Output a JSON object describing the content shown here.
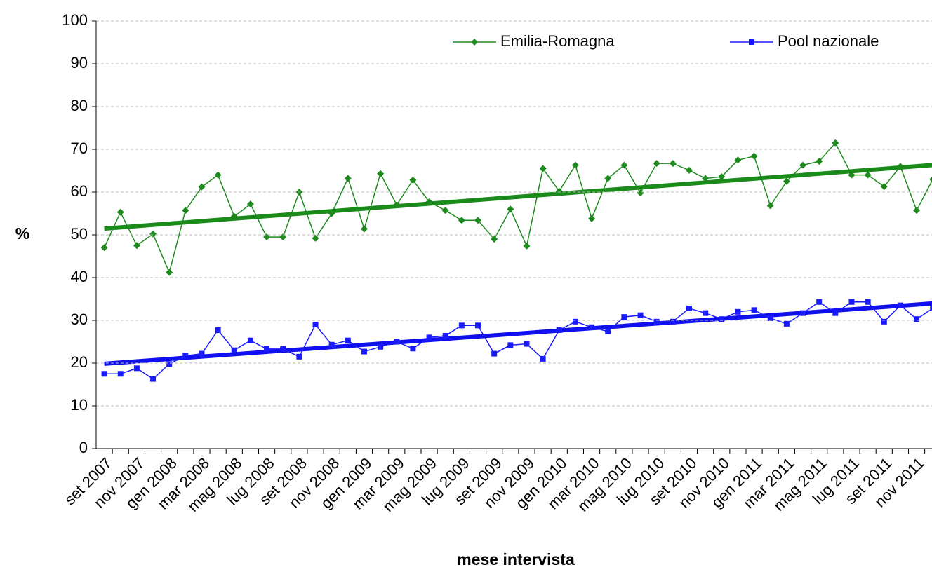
{
  "chart_data": {
    "type": "line",
    "y_label": "%",
    "x_label": "mese intervista",
    "categories": [
      "set 2007",
      null,
      "nov 2007",
      null,
      "gen 2008",
      null,
      "mar 2008",
      null,
      "mag 2008",
      null,
      "lug 2008",
      null,
      "set 2008",
      null,
      "nov 2008",
      null,
      "gen 2009",
      null,
      "mar 2009",
      null,
      "mag 2009",
      null,
      "lug 2009",
      null,
      "set 2009",
      null,
      "nov 2009",
      null,
      "gen 2010",
      null,
      "mar 2010",
      null,
      "mag 2010",
      null,
      "lug 2010",
      null,
      "set 2010",
      null,
      "nov 2010",
      null,
      "gen 2011",
      null,
      "mar 2011",
      null,
      "mag 2011",
      null,
      "lug 2011",
      null,
      "set 2011",
      null,
      "nov 2011",
      null
    ],
    "series": [
      {
        "name": "Emilia-Romagna",
        "color": "#1e8a1e",
        "marker": "diamond",
        "values": [
          47,
          55.3,
          47.5,
          50.2,
          41.2,
          55.7,
          61.2,
          64,
          54.3,
          57.2,
          49.5,
          49.5,
          60,
          49.2,
          55,
          63.2,
          51.4,
          64.3,
          57,
          62.8,
          57.7,
          55.7,
          53.4,
          53.4,
          49,
          56,
          47.4,
          65.5,
          60.2,
          66.3,
          53.8,
          63.2,
          66.3,
          59.8,
          66.7,
          66.7,
          65.1,
          63.2,
          63.6,
          67.5,
          68.4,
          56.8,
          62.5,
          66.3,
          67.2,
          71.5,
          64,
          64,
          61.3,
          66,
          55.7,
          63
        ]
      },
      {
        "name": "Pool nazionale",
        "color": "#1a1aff",
        "marker": "square",
        "values": [
          17.5,
          17.5,
          18.8,
          16.3,
          19.8,
          21.7,
          22.2,
          27.7,
          23,
          25.3,
          23.3,
          23.3,
          21.5,
          29,
          24.3,
          25.3,
          22.7,
          23.8,
          25,
          23.4,
          26,
          26.4,
          28.8,
          28.8,
          22.2,
          24.2,
          24.5,
          21,
          27.7,
          29.7,
          28.4,
          27.4,
          30.8,
          31.2,
          29.7,
          29.7,
          32.8,
          31.7,
          30.3,
          32,
          32.4,
          30.5,
          29.2,
          31.7,
          34.3,
          31.7,
          34.3,
          34.3,
          29.7,
          33.5,
          30.3,
          32.8
        ]
      }
    ],
    "ylim": [
      0,
      100
    ],
    "yticks": [
      0,
      10,
      20,
      30,
      40,
      50,
      60,
      70,
      80,
      90,
      100
    ],
    "grid": true,
    "trendline": true,
    "legend": "top-right"
  }
}
